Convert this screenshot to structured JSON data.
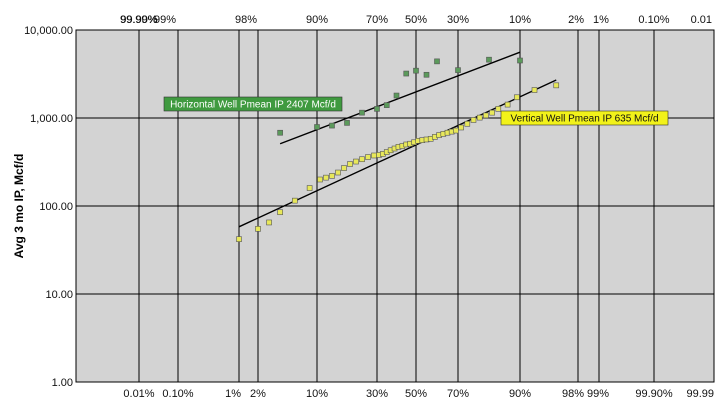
{
  "chart_data": {
    "type": "scatter",
    "title": "",
    "xlabel": "",
    "ylabel": "Avg 3 mo IP, Mcf/d",
    "y_scale": "log",
    "x_scale": "log-normal probability",
    "ylim": [
      1,
      10000
    ],
    "y_ticks": [
      "1.00",
      "10.00",
      "100.00",
      "1,000.00",
      "10,000.00"
    ],
    "x_ticks_top": [
      "99.99%",
      "99.90%",
      "99%",
      "98%",
      "90%",
      "70%",
      "50%",
      "30%",
      "10%",
      "2%",
      "1%",
      "0.10%",
      "0.01"
    ],
    "x_ticks_bottom": [
      "0.01%",
      "0.10%",
      "1%",
      "2%",
      "10%",
      "30%",
      "50%",
      "70%",
      "90%",
      "98%",
      "99%",
      "99.90%",
      "99.99"
    ],
    "grid": true,
    "colors": {
      "plot_background": "#d3d3d3",
      "gridline": "#000000",
      "horizontal_marker": "#5b9a5b",
      "vertical_marker": "#e8e85a",
      "horizontal_label_bg": "#3f9a3f",
      "vertical_label_bg": "#f2f21a"
    },
    "series": [
      {
        "key": "horizontal",
        "x": [
          5,
          10,
          15,
          20,
          25,
          30,
          35,
          40,
          45,
          50,
          55,
          60,
          70,
          80,
          90
        ],
        "values": [
          680,
          790,
          820,
          880,
          1150,
          1270,
          1400,
          1800,
          3200,
          3450,
          3100,
          4400,
          3500,
          4600,
          4500
        ]
      },
      {
        "key": "vertical",
        "x": [
          1,
          2,
          3.5,
          5,
          7,
          9,
          11,
          13,
          15,
          17,
          19,
          21,
          23,
          25,
          27,
          29,
          31,
          33,
          35,
          37,
          39,
          41,
          43,
          45,
          47,
          49,
          51,
          53,
          55,
          57,
          59,
          61,
          63,
          65,
          67,
          69,
          71,
          73,
          75,
          77,
          79,
          81,
          83,
          86,
          89,
          92,
          95
        ],
        "values": [
          42,
          55,
          65,
          85,
          115,
          160,
          200,
          210,
          220,
          240,
          270,
          300,
          320,
          340,
          360,
          375,
          380,
          390,
          410,
          430,
          450,
          470,
          480,
          500,
          510,
          530,
          550,
          560,
          570,
          580,
          610,
          640,
          660,
          680,
          700,
          720,
          780,
          860,
          950,
          1010,
          1070,
          1150,
          1270,
          1420,
          1720,
          2080,
          2350
        ]
      }
    ],
    "trendlines": [
      {
        "key": "horizontal",
        "x": [
          5,
          90
        ],
        "values": [
          510,
          5600
        ]
      },
      {
        "key": "vertical",
        "x": [
          1,
          95
        ],
        "values": [
          58,
          2700
        ]
      }
    ],
    "annotations": [
      {
        "key": "horizontal",
        "text": "Horizontal Well Pmean IP 2407 Mcf/d"
      },
      {
        "key": "vertical",
        "text": "Vertical Well Pmean IP 635 Mcf/d"
      }
    ]
  }
}
